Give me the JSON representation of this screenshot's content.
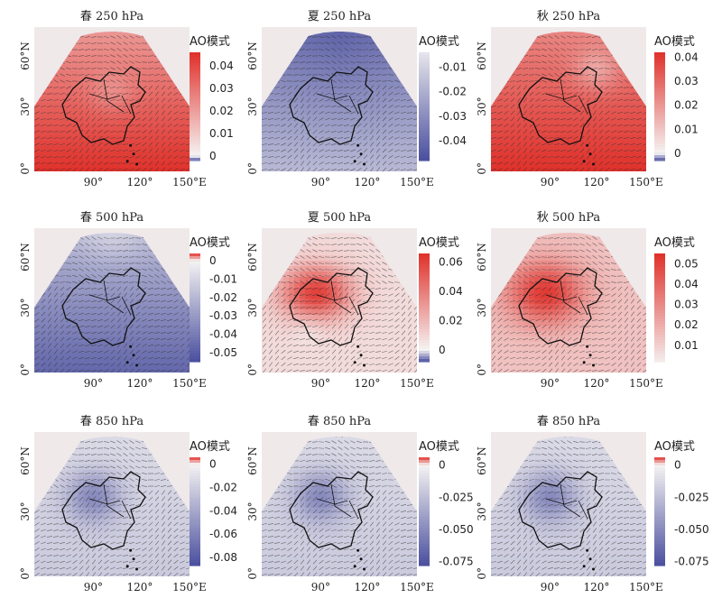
{
  "figure": {
    "panels": [
      {
        "title": "春 250 hPa",
        "colorbar_title": "AO模式",
        "colorbar_ticks": [
          "0.04",
          "0.03",
          "0.02",
          "0.01",
          "0"
        ],
        "colorbar_range": [
          -0.002,
          0.046
        ],
        "field": "warm_uniform"
      },
      {
        "title": "夏 250 hPa",
        "colorbar_title": "AO模式",
        "colorbar_ticks": [
          "-0.01",
          "-0.02",
          "-0.03",
          "-0.04"
        ],
        "colorbar_range": [
          -0.048,
          -0.004
        ],
        "field": "cool_north"
      },
      {
        "title": "秋 250 hPa",
        "colorbar_title": "AO模式",
        "colorbar_ticks": [
          "0.04",
          "0.03",
          "0.02",
          "0.01",
          "0"
        ],
        "colorbar_range": [
          -0.003,
          0.042
        ],
        "field": "warm_south"
      },
      {
        "title": "春 500 hPa",
        "colorbar_title": "AO模式",
        "colorbar_ticks": [
          "0",
          "-0.01",
          "-0.02",
          "-0.03",
          "-0.04",
          "-0.05"
        ],
        "colorbar_range": [
          -0.055,
          0.004
        ],
        "field": "cool_mid"
      },
      {
        "title": "夏 500 hPa",
        "colorbar_title": "AO模式",
        "colorbar_ticks": [
          "0.06",
          "0.04",
          "0.02",
          "0"
        ],
        "colorbar_range": [
          -0.008,
          0.066
        ],
        "field": "warm_plateau"
      },
      {
        "title": "秋 500 hPa",
        "colorbar_title": "AO模式",
        "colorbar_ticks": [
          "0.05",
          "0.04",
          "0.03",
          "0.02",
          "0.01"
        ],
        "colorbar_range": [
          0.002,
          0.055
        ],
        "field": "warm_plateau_strong"
      },
      {
        "title": "春 850 hPa",
        "colorbar_title": "AO模式",
        "colorbar_ticks": [
          "0",
          "-0.02",
          "-0.04",
          "-0.06",
          "-0.08"
        ],
        "colorbar_range": [
          -0.087,
          0.006
        ],
        "field": "cool_weak"
      },
      {
        "title": "春 850 hPa",
        "colorbar_title": "AO模式",
        "colorbar_ticks": [
          "0",
          "-0.025",
          "-0.050",
          "-0.075"
        ],
        "colorbar_range": [
          -0.078,
          0.006
        ],
        "field": "cool_weak"
      },
      {
        "title": "春 850 hPa",
        "colorbar_title": "AO模式",
        "colorbar_ticks": [
          "0",
          "-0.025",
          "-0.050",
          "-0.075"
        ],
        "colorbar_range": [
          -0.078,
          0.006
        ],
        "field": "cool_weak"
      }
    ],
    "x_ticks": [
      "90°",
      "120°",
      "150°E"
    ],
    "y_ticks": [
      "60°N",
      "30°",
      "0°"
    ],
    "colors": {
      "diverging_neg": "#4a4f9e",
      "diverging_mid": "#f5f3f3",
      "diverging_pos": "#e0302a",
      "vector": "#333333",
      "border": "#111111",
      "background": "#efe9ea"
    }
  }
}
